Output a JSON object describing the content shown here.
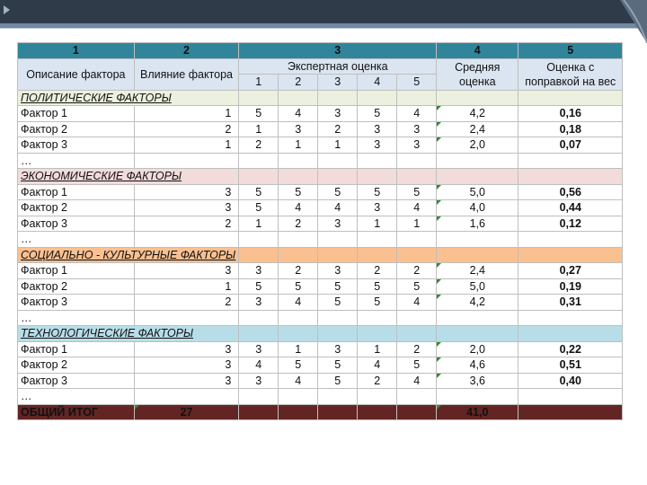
{
  "header": {
    "col_numbers": [
      "1",
      "2",
      "3",
      "4",
      "5"
    ],
    "desc_label": "Описание фактора",
    "influence_label": "Влияние фактора",
    "expert_label": "Экспертная оценка",
    "expert_cols": [
      "1",
      "2",
      "3",
      "4",
      "5"
    ],
    "avg_label": "Средняя оценка",
    "weighted_label": "Оценка с поправкой на вес"
  },
  "sections": [
    {
      "title": "ПОЛИТИЧЕСКИЕ ФАКТОРЫ",
      "color": "#ebf1de",
      "rows": [
        {
          "name": "Фактор 1",
          "influence": "1",
          "scores": [
            "5",
            "4",
            "3",
            "5",
            "4"
          ],
          "avg": "4,2",
          "weighted": "0,16"
        },
        {
          "name": "Фактор 2",
          "influence": "2",
          "scores": [
            "1",
            "3",
            "2",
            "3",
            "3"
          ],
          "avg": "2,4",
          "weighted": "0,18"
        },
        {
          "name": "Фактор 3",
          "influence": "1",
          "scores": [
            "2",
            "1",
            "1",
            "3",
            "3"
          ],
          "avg": "2,0",
          "weighted": "0,07"
        }
      ],
      "ellipsis": "…"
    },
    {
      "title": "ЭКОНОМИЧЕСКИЕ ФАКТОРЫ",
      "color": "#f2dcdb",
      "rows": [
        {
          "name": "Фактор 1",
          "influence": "3",
          "scores": [
            "5",
            "5",
            "5",
            "5",
            "5"
          ],
          "avg": "5,0",
          "weighted": "0,56"
        },
        {
          "name": "Фактор 2",
          "influence": "3",
          "scores": [
            "5",
            "4",
            "4",
            "3",
            "4"
          ],
          "avg": "4,0",
          "weighted": "0,44"
        },
        {
          "name": "Фактор 3",
          "influence": "2",
          "scores": [
            "1",
            "2",
            "3",
            "1",
            "1"
          ],
          "avg": "1,6",
          "weighted": "0,12"
        }
      ],
      "ellipsis": "…"
    },
    {
      "title": "СОЦИАЛЬНО - КУЛЬТУРНЫЕ ФАКТОРЫ",
      "color": "#fac090",
      "rows": [
        {
          "name": "Фактор 1",
          "influence": "3",
          "scores": [
            "3",
            "2",
            "3",
            "2",
            "2"
          ],
          "avg": "2,4",
          "weighted": "0,27"
        },
        {
          "name": "Фактор 2",
          "influence": "1",
          "scores": [
            "5",
            "5",
            "5",
            "5",
            "5"
          ],
          "avg": "5,0",
          "weighted": "0,19"
        },
        {
          "name": "Фактор 3",
          "influence": "2",
          "scores": [
            "3",
            "4",
            "5",
            "5",
            "4"
          ],
          "avg": "4,2",
          "weighted": "0,31"
        }
      ],
      "ellipsis": "…"
    },
    {
      "title": "ТЕХНОЛОГИЧЕСКИЕ ФАКТОРЫ",
      "color": "#b7dee8",
      "rows": [
        {
          "name": "Фактор 1",
          "influence": "3",
          "scores": [
            "3",
            "1",
            "3",
            "1",
            "2"
          ],
          "avg": "2,0",
          "weighted": "0,22"
        },
        {
          "name": "Фактор 2",
          "influence": "3",
          "scores": [
            "4",
            "5",
            "5",
            "4",
            "5"
          ],
          "avg": "4,6",
          "weighted": "0,51"
        },
        {
          "name": "Фактор 3",
          "influence": "3",
          "scores": [
            "3",
            "4",
            "5",
            "2",
            "4"
          ],
          "avg": "3,6",
          "weighted": "0,40"
        }
      ],
      "ellipsis": "…"
    }
  ],
  "total": {
    "label": "ОБЩИЙ ИТОГ",
    "influence": "27",
    "avg": "41,0"
  },
  "colors": {
    "top_bar": "#2f3b48",
    "header": "#31859b",
    "total": "#632523"
  }
}
